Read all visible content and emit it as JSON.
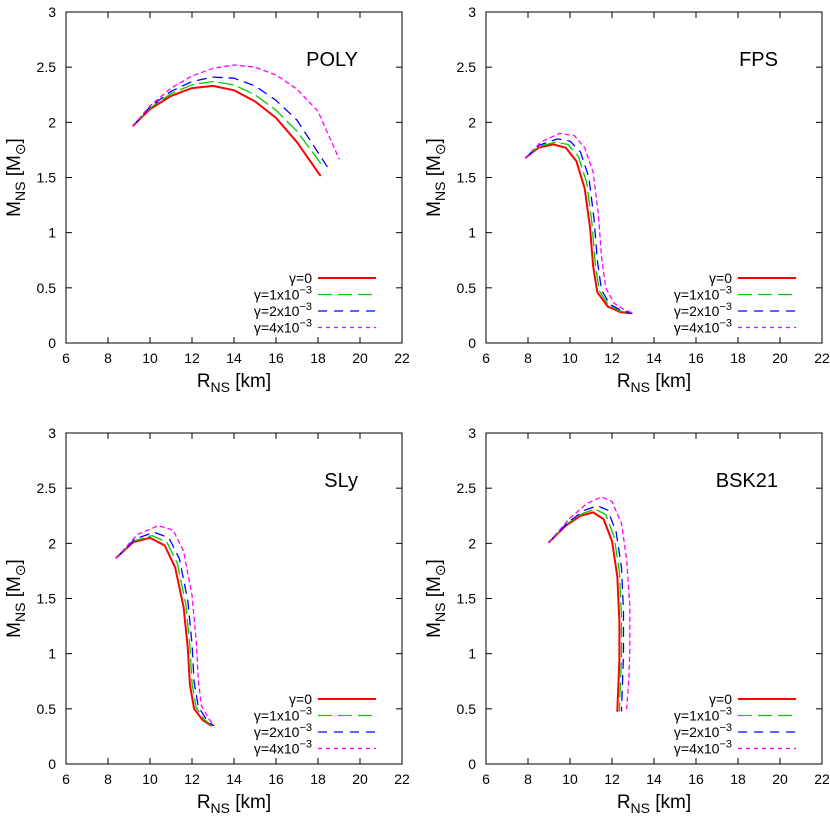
{
  "chart_data": [
    {
      "type": "line",
      "title": "POLY",
      "xlabel_main": "R",
      "xlabel_sub": "NS",
      "xlabel_unit": " [km]",
      "ylabel_main": "M",
      "ylabel_sub": "NS",
      "ylabel_unit_open": " [M",
      "ylabel_unit_sym": "⊙",
      "ylabel_unit_close": "]",
      "xlim": [
        6,
        22
      ],
      "ylim": [
        0,
        3
      ],
      "x_ticks": [
        "6",
        "8",
        "10",
        "12",
        "14",
        "16",
        "18",
        "20",
        "22"
      ],
      "y_ticks": [
        "0",
        "0.5",
        "1",
        "1.5",
        "2",
        "2.5",
        "3"
      ],
      "series": [
        {
          "name": "γ=0",
          "color": "#ff0000",
          "dash": "solid",
          "points": [
            [
              9.2,
              1.97
            ],
            [
              10,
              2.12
            ],
            [
              11,
              2.24
            ],
            [
              12,
              2.31
            ],
            [
              13,
              2.33
            ],
            [
              14,
              2.29
            ],
            [
              15,
              2.19
            ],
            [
              16,
              2.04
            ],
            [
              17,
              1.82
            ],
            [
              18.1,
              1.52
            ]
          ]
        },
        {
          "name": "γ=1x10⁻³",
          "color": "#00cc00",
          "dash": "long",
          "points": [
            [
              9.2,
              1.97
            ],
            [
              10,
              2.13
            ],
            [
              11,
              2.26
            ],
            [
              12,
              2.34
            ],
            [
              13,
              2.37
            ],
            [
              14,
              2.34
            ],
            [
              15,
              2.25
            ],
            [
              16,
              2.11
            ],
            [
              17,
              1.92
            ],
            [
              18.2,
              1.61
            ]
          ]
        },
        {
          "name": "γ=2x10⁻³",
          "color": "#0000ff",
          "dash": "medium",
          "points": [
            [
              9.2,
              1.97
            ],
            [
              10,
              2.14
            ],
            [
              11,
              2.28
            ],
            [
              12,
              2.37
            ],
            [
              13,
              2.41
            ],
            [
              14,
              2.4
            ],
            [
              15,
              2.33
            ],
            [
              16,
              2.2
            ],
            [
              17,
              2.02
            ],
            [
              18.5,
              1.58
            ]
          ]
        },
        {
          "name": "γ=4x10⁻³",
          "color": "#ff00ff",
          "dash": "short",
          "points": [
            [
              9.2,
              1.97
            ],
            [
              10,
              2.15
            ],
            [
              11,
              2.31
            ],
            [
              12,
              2.42
            ],
            [
              13,
              2.49
            ],
            [
              14,
              2.52
            ],
            [
              15,
              2.5
            ],
            [
              16,
              2.43
            ],
            [
              17,
              2.3
            ],
            [
              18,
              2.1
            ],
            [
              19,
              1.67
            ]
          ]
        }
      ],
      "legend": {
        "labels": [
          "γ=0",
          "γ=1x10",
          "γ=2x10",
          "γ=4x10"
        ],
        "exponent": "−3",
        "position": "bottom-right"
      }
    },
    {
      "type": "line",
      "title": "FPS",
      "xlabel_main": "R",
      "xlabel_sub": "NS",
      "xlabel_unit": " [km]",
      "ylabel_main": "M",
      "ylabel_sub": "NS",
      "ylabel_unit_open": " [M",
      "ylabel_unit_sym": "⊙",
      "ylabel_unit_close": "]",
      "xlim": [
        6,
        22
      ],
      "ylim": [
        0,
        3
      ],
      "x_ticks": [
        "6",
        "8",
        "10",
        "12",
        "14",
        "16",
        "18",
        "20",
        "22"
      ],
      "y_ticks": [
        "0",
        "0.5",
        "1",
        "1.5",
        "2",
        "2.5",
        "3"
      ],
      "series": [
        {
          "name": "γ=0",
          "color": "#ff0000",
          "dash": "solid",
          "points": [
            [
              7.9,
              1.68
            ],
            [
              8.5,
              1.77
            ],
            [
              9.2,
              1.8
            ],
            [
              9.8,
              1.77
            ],
            [
              10.3,
              1.65
            ],
            [
              10.7,
              1.4
            ],
            [
              10.95,
              1.05
            ],
            [
              11.1,
              0.7
            ],
            [
              11.3,
              0.46
            ],
            [
              11.8,
              0.33
            ],
            [
              12.4,
              0.28
            ],
            [
              12.9,
              0.27
            ]
          ]
        },
        {
          "name": "γ=1x10⁻³",
          "color": "#00cc00",
          "dash": "long",
          "points": [
            [
              7.9,
              1.68
            ],
            [
              8.5,
              1.78
            ],
            [
              9.3,
              1.82
            ],
            [
              9.9,
              1.8
            ],
            [
              10.4,
              1.69
            ],
            [
              10.8,
              1.45
            ],
            [
              11.05,
              1.08
            ],
            [
              11.2,
              0.72
            ],
            [
              11.4,
              0.47
            ],
            [
              11.85,
              0.34
            ],
            [
              12.4,
              0.29
            ],
            [
              12.9,
              0.27
            ]
          ]
        },
        {
          "name": "γ=2x10⁻³",
          "color": "#0000ff",
          "dash": "medium",
          "points": [
            [
              7.9,
              1.68
            ],
            [
              8.5,
              1.79
            ],
            [
              9.4,
              1.85
            ],
            [
              10.0,
              1.83
            ],
            [
              10.5,
              1.73
            ],
            [
              10.9,
              1.5
            ],
            [
              11.15,
              1.12
            ],
            [
              11.3,
              0.75
            ],
            [
              11.5,
              0.48
            ],
            [
              11.9,
              0.35
            ],
            [
              12.5,
              0.29
            ],
            [
              12.95,
              0.27
            ]
          ]
        },
        {
          "name": "γ=4x10⁻³",
          "color": "#ff00ff",
          "dash": "short",
          "points": [
            [
              7.9,
              1.68
            ],
            [
              8.6,
              1.82
            ],
            [
              9.5,
              1.9
            ],
            [
              10.2,
              1.88
            ],
            [
              10.7,
              1.77
            ],
            [
              11.1,
              1.55
            ],
            [
              11.35,
              1.17
            ],
            [
              11.5,
              0.78
            ],
            [
              11.7,
              0.5
            ],
            [
              12.1,
              0.36
            ],
            [
              12.6,
              0.3
            ],
            [
              13.0,
              0.27
            ]
          ]
        }
      ],
      "legend": {
        "labels": [
          "γ=0",
          "γ=1x10",
          "γ=2x10",
          "γ=4x10"
        ],
        "exponent": "−3",
        "position": "bottom-right"
      }
    },
    {
      "type": "line",
      "title": "SLy",
      "xlabel_main": "R",
      "xlabel_sub": "NS",
      "xlabel_unit": " [km]",
      "ylabel_main": "M",
      "ylabel_sub": "NS",
      "ylabel_unit_open": " [M",
      "ylabel_unit_sym": "⊙",
      "ylabel_unit_close": "]",
      "xlim": [
        6,
        22
      ],
      "ylim": [
        0,
        3
      ],
      "x_ticks": [
        "6",
        "8",
        "10",
        "12",
        "14",
        "16",
        "18",
        "20",
        "22"
      ],
      "y_ticks": [
        "0",
        "0.5",
        "1",
        "1.5",
        "2",
        "2.5",
        "3"
      ],
      "series": [
        {
          "name": "γ=0",
          "color": "#ff0000",
          "dash": "solid",
          "points": [
            [
              8.4,
              1.87
            ],
            [
              9.2,
              2.01
            ],
            [
              10.0,
              2.05
            ],
            [
              10.7,
              1.98
            ],
            [
              11.2,
              1.78
            ],
            [
              11.6,
              1.42
            ],
            [
              11.8,
              1.05
            ],
            [
              11.9,
              0.72
            ],
            [
              12.1,
              0.5
            ],
            [
              12.5,
              0.4
            ],
            [
              12.9,
              0.35
            ]
          ]
        },
        {
          "name": "γ=1x10⁻³",
          "color": "#00cc00",
          "dash": "long",
          "points": [
            [
              8.4,
              1.87
            ],
            [
              9.2,
              2.02
            ],
            [
              10.1,
              2.07
            ],
            [
              10.8,
              2.01
            ],
            [
              11.3,
              1.82
            ],
            [
              11.7,
              1.45
            ],
            [
              11.9,
              1.07
            ],
            [
              12.0,
              0.73
            ],
            [
              12.2,
              0.51
            ],
            [
              12.6,
              0.4
            ],
            [
              12.95,
              0.35
            ]
          ]
        },
        {
          "name": "γ=2x10⁻³",
          "color": "#0000ff",
          "dash": "medium",
          "points": [
            [
              8.4,
              1.87
            ],
            [
              9.3,
              2.04
            ],
            [
              10.2,
              2.1
            ],
            [
              10.9,
              2.05
            ],
            [
              11.4,
              1.86
            ],
            [
              11.8,
              1.48
            ],
            [
              12.0,
              1.09
            ],
            [
              12.1,
              0.74
            ],
            [
              12.3,
              0.52
            ],
            [
              12.7,
              0.4
            ],
            [
              13.0,
              0.35
            ]
          ]
        },
        {
          "name": "γ=4x10⁻³",
          "color": "#ff00ff",
          "dash": "short",
          "points": [
            [
              8.4,
              1.87
            ],
            [
              9.4,
              2.08
            ],
            [
              10.4,
              2.16
            ],
            [
              11.1,
              2.12
            ],
            [
              11.6,
              1.93
            ],
            [
              12.0,
              1.53
            ],
            [
              12.2,
              1.12
            ],
            [
              12.3,
              0.76
            ],
            [
              12.45,
              0.53
            ],
            [
              12.8,
              0.41
            ],
            [
              13.05,
              0.35
            ]
          ]
        }
      ],
      "legend": {
        "labels": [
          "γ=0",
          "γ=1x10",
          "γ=2x10",
          "γ=4x10"
        ],
        "exponent": "−3",
        "position": "bottom-right"
      }
    },
    {
      "type": "line",
      "title": "BSK21",
      "xlabel_main": "R",
      "xlabel_sub": "NS",
      "xlabel_unit": " [km]",
      "ylabel_main": "M",
      "ylabel_sub": "NS",
      "ylabel_unit_open": " [M",
      "ylabel_unit_sym": "⊙",
      "ylabel_unit_close": "]",
      "xlim": [
        6,
        22
      ],
      "ylim": [
        0,
        3
      ],
      "x_ticks": [
        "6",
        "8",
        "10",
        "12",
        "14",
        "16",
        "18",
        "20",
        "22"
      ],
      "y_ticks": [
        "0",
        "0.5",
        "1",
        "1.5",
        "2",
        "2.5",
        "3"
      ],
      "series": [
        {
          "name": "γ=0",
          "color": "#ff0000",
          "dash": "solid",
          "points": [
            [
              9.0,
              2.01
            ],
            [
              9.8,
              2.16
            ],
            [
              10.5,
              2.25
            ],
            [
              11.1,
              2.28
            ],
            [
              11.6,
              2.22
            ],
            [
              12.0,
              2.02
            ],
            [
              12.25,
              1.7
            ],
            [
              12.35,
              1.3
            ],
            [
              12.35,
              0.95
            ],
            [
              12.3,
              0.7
            ],
            [
              12.25,
              0.48
            ]
          ]
        },
        {
          "name": "γ=1x10⁻³",
          "color": "#00cc00",
          "dash": "long",
          "points": [
            [
              9.0,
              2.01
            ],
            [
              9.8,
              2.17
            ],
            [
              10.6,
              2.27
            ],
            [
              11.2,
              2.31
            ],
            [
              11.7,
              2.26
            ],
            [
              12.1,
              2.06
            ],
            [
              12.35,
              1.74
            ],
            [
              12.45,
              1.34
            ],
            [
              12.45,
              0.98
            ],
            [
              12.4,
              0.72
            ],
            [
              12.35,
              0.48
            ]
          ]
        },
        {
          "name": "γ=2x10⁻³",
          "color": "#0000ff",
          "dash": "medium",
          "points": [
            [
              9.0,
              2.01
            ],
            [
              9.9,
              2.19
            ],
            [
              10.7,
              2.3
            ],
            [
              11.3,
              2.34
            ],
            [
              11.8,
              2.3
            ],
            [
              12.2,
              2.1
            ],
            [
              12.45,
              1.78
            ],
            [
              12.55,
              1.38
            ],
            [
              12.55,
              1.01
            ],
            [
              12.5,
              0.74
            ],
            [
              12.45,
              0.48
            ]
          ]
        },
        {
          "name": "γ=4x10⁻³",
          "color": "#ff00ff",
          "dash": "short",
          "points": [
            [
              9.0,
              2.01
            ],
            [
              10.0,
              2.23
            ],
            [
              10.8,
              2.36
            ],
            [
              11.5,
              2.42
            ],
            [
              12.0,
              2.38
            ],
            [
              12.45,
              2.18
            ],
            [
              12.7,
              1.85
            ],
            [
              12.85,
              1.43
            ],
            [
              12.85,
              1.05
            ],
            [
              12.8,
              0.77
            ],
            [
              12.7,
              0.5
            ]
          ]
        }
      ],
      "legend": {
        "labels": [
          "γ=0",
          "γ=1x10",
          "γ=2x10",
          "γ=4x10"
        ],
        "exponent": "−3",
        "position": "bottom-right"
      }
    }
  ]
}
